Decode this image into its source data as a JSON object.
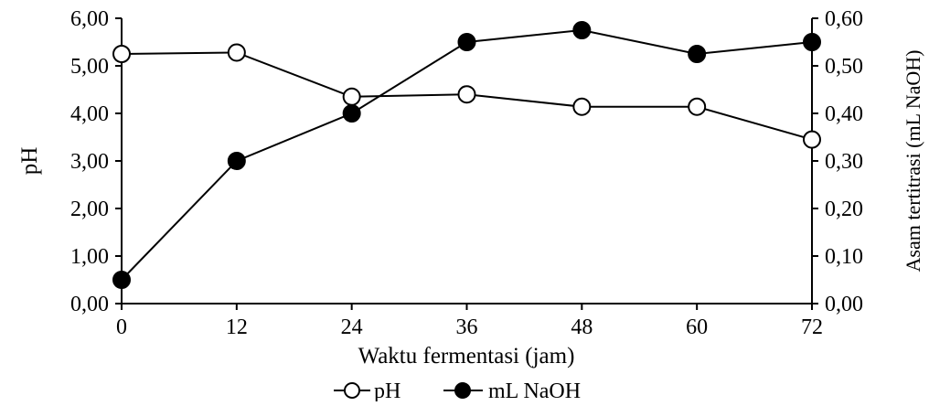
{
  "chart_data": {
    "type": "line",
    "title": "",
    "xlabel": "Waktu fermentasi (jam)",
    "ylabel_left": "pH",
    "ylabel_right": "Asam tertitrasi (mL NaOH)",
    "x": [
      0,
      12,
      24,
      36,
      48,
      60,
      72
    ],
    "x_ticks": [
      "0",
      "12",
      "24",
      "36",
      "48",
      "60",
      "72"
    ],
    "xlim": [
      0,
      72
    ],
    "ylim_left": [
      0,
      6
    ],
    "ylim_right": [
      0,
      0.6
    ],
    "y_ticks_left": [
      "0,00",
      "1,00",
      "2,00",
      "3,00",
      "4,00",
      "5,00",
      "6,00"
    ],
    "y_ticks_right": [
      "0,00",
      "0,10",
      "0,20",
      "0,30",
      "0,40",
      "0,50",
      "0,60"
    ],
    "grid": false,
    "legend_position": "bottom-center",
    "series": [
      {
        "name": "pH",
        "axis": "left",
        "marker": "open-circle",
        "color": "#000000",
        "values": [
          5.25,
          5.28,
          4.35,
          4.4,
          4.14,
          4.14,
          3.45
        ]
      },
      {
        "name": "mL NaOH",
        "axis": "right",
        "marker": "filled-circle",
        "color": "#000000",
        "values": [
          0.05,
          0.3,
          0.4,
          0.55,
          0.575,
          0.525,
          0.55
        ]
      }
    ]
  }
}
